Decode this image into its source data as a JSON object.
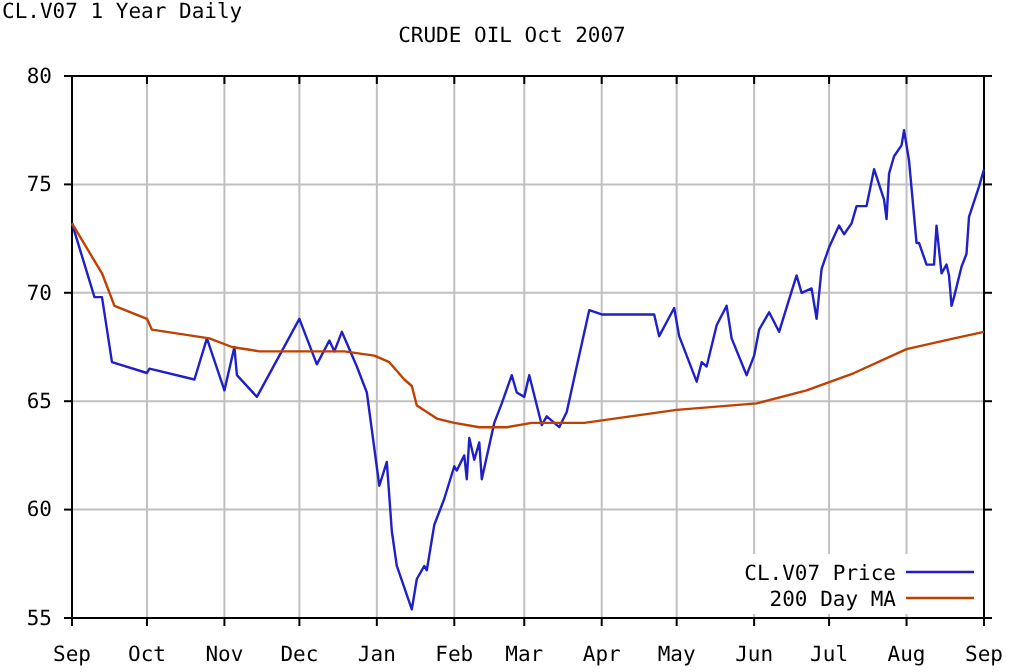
{
  "chart_data": {
    "type": "line",
    "title": "CRUDE OIL Oct 2007",
    "annotations": [
      "CL.V07 1 Year Daily"
    ],
    "xlim": [
      "2006-09-01",
      "2007-09-01"
    ],
    "xticks": [
      {
        "value": "2006-09-01",
        "label": "Sep"
      },
      {
        "value": "2006-10-01",
        "label": "Oct"
      },
      {
        "value": "2006-11-01",
        "label": "Nov"
      },
      {
        "value": "2006-12-01",
        "label": "Dec"
      },
      {
        "value": "2007-01-01",
        "label": "Jan"
      },
      {
        "value": "2007-02-01",
        "label": "Feb"
      },
      {
        "value": "2007-03-01",
        "label": "Mar"
      },
      {
        "value": "2007-04-01",
        "label": "Apr"
      },
      {
        "value": "2007-05-01",
        "label": "May"
      },
      {
        "value": "2007-06-01",
        "label": "Jun"
      },
      {
        "value": "2007-07-01",
        "label": "Jul"
      },
      {
        "value": "2007-08-01",
        "label": "Aug"
      },
      {
        "value": "2007-09-01",
        "label": "Sep"
      }
    ],
    "ylim": [
      55,
      80
    ],
    "yticks": [
      55,
      60,
      65,
      70,
      75,
      80
    ],
    "grid": true,
    "legend": "bottom right",
    "marker": "none",
    "line_style": "solid",
    "series": [
      {
        "name": "CL.V07 Price",
        "color": "#2020c8",
        "x": [
          "2006-09-01",
          "2006-09-10",
          "2006-09-13",
          "2006-09-17",
          "2006-10-01",
          "2006-10-02",
          "2006-10-20",
          "2006-10-25",
          "2006-11-01",
          "2006-11-05",
          "2006-11-06",
          "2006-11-14",
          "2006-12-01",
          "2006-12-08",
          "2006-12-13",
          "2006-12-15",
          "2006-12-18",
          "2006-12-24",
          "2006-12-28",
          "2007-01-02",
          "2007-01-05",
          "2007-01-07",
          "2007-01-09",
          "2007-01-15",
          "2007-01-17",
          "2007-01-20",
          "2007-01-21",
          "2007-01-24",
          "2007-01-28",
          "2007-02-01",
          "2007-02-02",
          "2007-02-05",
          "2007-02-06",
          "2007-02-07",
          "2007-02-09",
          "2007-02-11",
          "2007-02-12",
          "2007-02-17",
          "2007-02-20",
          "2007-02-24",
          "2007-02-26",
          "2007-03-01",
          "2007-03-03",
          "2007-03-08",
          "2007-03-10",
          "2007-03-15",
          "2007-03-18",
          "2007-03-22",
          "2007-03-27",
          "2007-04-01",
          "2007-04-22",
          "2007-04-24",
          "2007-04-30",
          "2007-05-02",
          "2007-05-09",
          "2007-05-11",
          "2007-05-13",
          "2007-05-17",
          "2007-05-21",
          "2007-05-23",
          "2007-05-29",
          "2007-06-01",
          "2007-06-03",
          "2007-06-07",
          "2007-06-11",
          "2007-06-15",
          "2007-06-18",
          "2007-06-20",
          "2007-06-24",
          "2007-06-26",
          "2007-06-28",
          "2007-07-01",
          "2007-07-05",
          "2007-07-07",
          "2007-07-10",
          "2007-07-12",
          "2007-07-16",
          "2007-07-19",
          "2007-07-23",
          "2007-07-24",
          "2007-07-25",
          "2007-07-27",
          "2007-07-30",
          "2007-07-31",
          "2007-08-02",
          "2007-08-05",
          "2007-08-06",
          "2007-08-09",
          "2007-08-12",
          "2007-08-13",
          "2007-08-15",
          "2007-08-17",
          "2007-08-18",
          "2007-08-19",
          "2007-08-20",
          "2007-08-23",
          "2007-08-25",
          "2007-08-26",
          "2007-08-30",
          "2007-09-01"
        ],
        "values": [
          73.2,
          69.8,
          69.8,
          66.8,
          66.3,
          66.5,
          66.0,
          67.9,
          65.5,
          67.5,
          66.2,
          65.2,
          68.8,
          66.7,
          67.8,
          67.3,
          68.2,
          66.6,
          65.4,
          61.1,
          62.2,
          59.0,
          57.4,
          55.4,
          56.8,
          57.4,
          57.2,
          59.3,
          60.5,
          62.0,
          61.8,
          62.5,
          61.4,
          63.3,
          62.3,
          63.1,
          61.4,
          64.0,
          64.9,
          66.2,
          65.4,
          65.2,
          66.2,
          63.9,
          64.3,
          63.8,
          64.5,
          66.6,
          69.2,
          69.0,
          69.0,
          68.0,
          69.3,
          68.0,
          65.9,
          66.8,
          66.6,
          68.5,
          69.4,
          67.9,
          66.2,
          67.1,
          68.3,
          69.1,
          68.2,
          69.7,
          70.8,
          70.0,
          70.2,
          68.8,
          71.1,
          72.1,
          73.1,
          72.7,
          73.2,
          74.0,
          74.0,
          75.7,
          74.3,
          73.4,
          75.5,
          76.3,
          76.8,
          77.5,
          76.1,
          72.3,
          72.3,
          71.3,
          71.3,
          73.1,
          70.9,
          71.3,
          70.8,
          69.4,
          69.8,
          71.2,
          71.8,
          73.5,
          74.9,
          75.7
        ]
      },
      {
        "name": "200 Day MA",
        "color": "#c04000",
        "x": [
          "2006-09-01",
          "2006-09-13",
          "2006-09-18",
          "2006-10-01",
          "2006-10-03",
          "2006-10-26",
          "2006-11-04",
          "2006-11-15",
          "2006-12-19",
          "2006-12-31",
          "2007-01-06",
          "2007-01-12",
          "2007-01-15",
          "2007-01-17",
          "2007-01-25",
          "2007-02-01",
          "2007-02-11",
          "2007-02-22",
          "2007-03-04",
          "2007-03-25",
          "2007-05-01",
          "2007-06-02",
          "2007-06-22",
          "2007-07-11",
          "2007-08-01",
          "2007-08-20",
          "2007-09-01"
        ],
        "values": [
          73.2,
          70.9,
          69.4,
          68.8,
          68.3,
          67.9,
          67.5,
          67.3,
          67.3,
          67.1,
          66.8,
          66.0,
          65.7,
          64.8,
          64.2,
          64.0,
          63.8,
          63.8,
          64.0,
          64.0,
          64.6,
          64.9,
          65.5,
          66.3,
          67.4,
          67.9,
          68.2
        ]
      }
    ]
  }
}
